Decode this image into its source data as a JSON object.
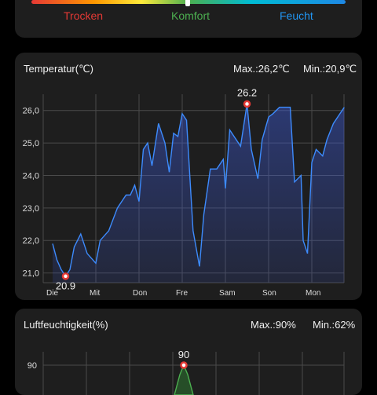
{
  "comfort": {
    "labels": [
      {
        "text": "Trocken",
        "color": "#e53935"
      },
      {
        "text": "Komfort",
        "color": "#4caf50"
      },
      {
        "text": "Feucht",
        "color": "#2196f3"
      }
    ],
    "indicator_value": 0.5
  },
  "temperature": {
    "title": "Temperatur(℃)",
    "max_label": "Max.:26,2℃",
    "min_label": "Min.:20,9℃",
    "max_marker": "26.2",
    "min_marker": "20.9"
  },
  "humidity": {
    "title": "Luftfeuchtigkeit(%)",
    "max_label": "Max.:90%",
    "min_label": "Min.:62%",
    "max_marker": "90"
  },
  "colors": {
    "line": "#3d8bfd",
    "marker": "#e53935",
    "hum_line": "#4caf50"
  },
  "chart_data": [
    {
      "type": "area",
      "title": "Temperatur(℃)",
      "xlabel": "",
      "ylabel": "",
      "categories": [
        "Die",
        "Mit",
        "Don",
        "Fre",
        "Sam",
        "Son",
        "Mon"
      ],
      "yticks": [
        "21,0",
        "22,0",
        "23,0",
        "24,0",
        "25,0",
        "26,0"
      ],
      "ylim": [
        20.7,
        26.5
      ],
      "grid": true,
      "x": [
        0,
        0.1,
        0.2,
        0.3,
        0.4,
        0.5,
        0.65,
        0.8,
        1.0,
        1.1,
        1.3,
        1.5,
        1.7,
        1.8,
        1.9,
        2.0,
        2.1,
        2.2,
        2.3,
        2.45,
        2.6,
        2.7,
        2.8,
        2.9,
        3.0,
        3.1,
        3.25,
        3.4,
        3.5,
        3.65,
        3.8,
        3.95,
        4.0,
        4.1,
        4.2,
        4.35,
        4.5,
        4.6,
        4.75,
        4.85,
        5.0,
        5.1,
        5.25,
        5.35,
        5.5,
        5.6,
        5.75,
        5.8,
        5.9,
        6.0,
        6.1,
        6.25,
        6.35,
        6.5,
        6.75
      ],
      "series": [
        {
          "values": [
            21.9,
            21.4,
            21.1,
            20.9,
            21.1,
            21.8,
            22.2,
            21.6,
            21.3,
            22.0,
            22.3,
            23.0,
            23.4,
            23.4,
            23.7,
            23.2,
            24.8,
            25.0,
            24.3,
            25.6,
            25.0,
            24.1,
            25.3,
            25.2,
            25.9,
            25.7,
            22.3,
            21.2,
            22.8,
            24.2,
            24.2,
            24.5,
            23.6,
            25.4,
            25.2,
            24.9,
            26.2,
            24.8,
            23.9,
            25.1,
            25.8,
            25.9,
            26.1,
            26.1,
            26.1,
            23.8,
            24.0,
            22.0,
            21.6,
            24.4,
            24.8,
            24.6,
            25.1,
            25.6,
            26.1
          ]
        }
      ],
      "annotations": [
        {
          "text": "26.2",
          "x": 4.5,
          "y": 26.2
        },
        {
          "text": "20.9",
          "x": 0.3,
          "y": 20.9
        }
      ]
    },
    {
      "type": "area",
      "title": "Luftfeuchtigkeit(%)",
      "yticks": [
        "90"
      ],
      "ylim": [
        62,
        92
      ],
      "annotations": [
        {
          "text": "90",
          "y": 90
        }
      ]
    }
  ]
}
